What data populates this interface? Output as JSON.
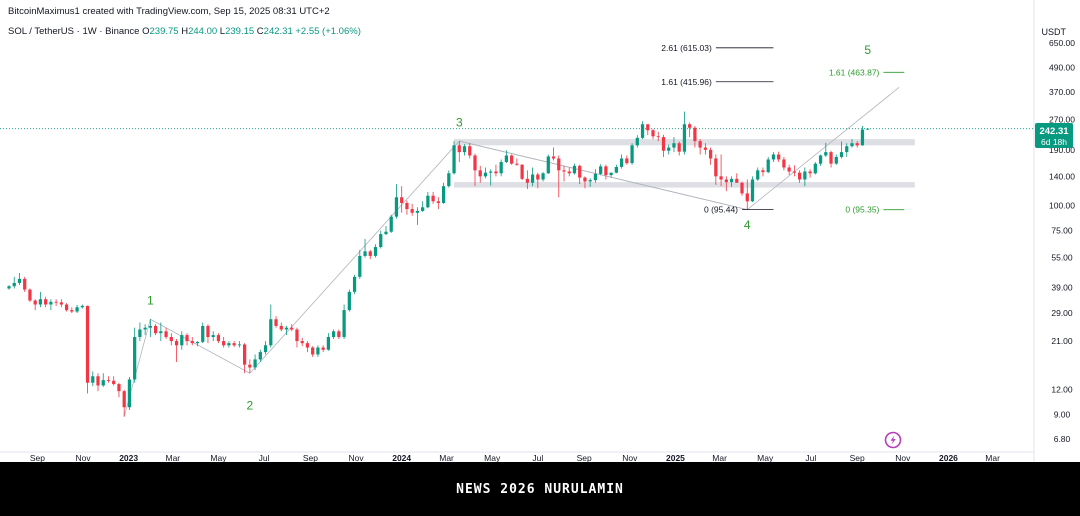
{
  "header": {
    "credit": "BitcoinMaximus1 created with TradingView.com, Sep 15, 2025 08:31 UTC+2",
    "symbol": "SOL / TetherUS · 1W · Binance",
    "o_label": "O",
    "o_val": "239.75",
    "h_label": "H",
    "h_val": "244.00",
    "l_label": "L",
    "l_val": "239.15",
    "c_label": "C",
    "c_val": "242.31",
    "change": "+2.55 (+1.06%)"
  },
  "currency": "USDT",
  "price_tag": {
    "price": "242.31",
    "countdown": "6d 18h"
  },
  "footer_text": "NEWS 2026 NURULAMIN",
  "colors": {
    "up": "#089981",
    "down": "#f23645",
    "wave": "#2e9b2e",
    "accent": "#b83dba"
  },
  "chart_data": {
    "type": "candlestick",
    "y_scale": "log",
    "y_ticks": [
      "650.00",
      "490.00",
      "370.00",
      "270.00",
      "190.00",
      "140.00",
      "100.00",
      "75.00",
      "55.00",
      "39.00",
      "29.00",
      "21.00",
      "12.00",
      "9.00",
      "6.80"
    ],
    "y_tick_values": [
      650,
      490,
      370,
      270,
      190,
      140,
      100,
      75,
      55,
      39,
      29,
      21,
      12,
      9,
      6.8
    ],
    "x_ticks": [
      "Sep",
      "Nov",
      "2023",
      "Mar",
      "May",
      "Jul",
      "Sep",
      "Nov",
      "2024",
      "Mar",
      "May",
      "Jul",
      "Sep",
      "Nov",
      "2025",
      "Mar",
      "May",
      "Jul",
      "Sep",
      "Nov",
      "2026",
      "Mar"
    ],
    "x_range": [
      "2022-07-25",
      "2026-04-20"
    ],
    "candles": [
      [
        "2022-07-25",
        38.5,
        40,
        38,
        39.5
      ],
      [
        "2022-08-01",
        39.5,
        44,
        38.5,
        41
      ],
      [
        "2022-08-08",
        41,
        46,
        40,
        43
      ],
      [
        "2022-08-15",
        43,
        44,
        37,
        38
      ],
      [
        "2022-08-22",
        38,
        38.5,
        33,
        33.5
      ],
      [
        "2022-08-29",
        33.5,
        34,
        30,
        32
      ],
      [
        "2022-09-05",
        32,
        37,
        31,
        34
      ],
      [
        "2022-09-12",
        34,
        35,
        31,
        32
      ],
      [
        "2022-09-19",
        32,
        34,
        30,
        33
      ],
      [
        "2022-09-26",
        33,
        34,
        31.5,
        32.8
      ],
      [
        "2022-10-03",
        32.8,
        34,
        31,
        32
      ],
      [
        "2022-10-10",
        32,
        32.5,
        29.5,
        30
      ],
      [
        "2022-10-17",
        30,
        31,
        29,
        29.5
      ],
      [
        "2022-10-24",
        29.5,
        31.8,
        29,
        31
      ],
      [
        "2022-10-31",
        31,
        32,
        30.5,
        31.5
      ],
      [
        "2022-11-07",
        31.5,
        31.6,
        11.5,
        13
      ],
      [
        "2022-11-14",
        13,
        14.8,
        12.5,
        14
      ],
      [
        "2022-11-21",
        14,
        14.5,
        11.8,
        12.6
      ],
      [
        "2022-11-28",
        12.6,
        14.5,
        12.4,
        13.4
      ],
      [
        "2022-12-05",
        13.4,
        14,
        13,
        13.3
      ],
      [
        "2022-12-12",
        13.3,
        14,
        12.6,
        12.8
      ],
      [
        "2022-12-19",
        12.8,
        13,
        11,
        11.8
      ],
      [
        "2022-12-26",
        11.8,
        12,
        8.8,
        9.8
      ],
      [
        "2023-01-02",
        9.8,
        13.9,
        9.5,
        13.5
      ],
      [
        "2023-01-09",
        13.5,
        24.5,
        13,
        22
      ],
      [
        "2023-01-16",
        22,
        26,
        21,
        24
      ],
      [
        "2023-01-23",
        24,
        25.5,
        22.5,
        24.5
      ],
      [
        "2023-01-30",
        24.5,
        27,
        22,
        25
      ],
      [
        "2023-02-06",
        25,
        25.5,
        22.5,
        23
      ],
      [
        "2023-02-13",
        23,
        26,
        21,
        23.5
      ],
      [
        "2023-02-20",
        23.5,
        24.5,
        21.5,
        22
      ],
      [
        "2023-02-27",
        22,
        23,
        20,
        21
      ],
      [
        "2023-03-06",
        21,
        21.5,
        16.5,
        20
      ],
      [
        "2023-03-13",
        20,
        23.5,
        19,
        22.5
      ],
      [
        "2023-03-20",
        22.5,
        23,
        20,
        21
      ],
      [
        "2023-03-27",
        21,
        22,
        20,
        20.5
      ],
      [
        "2023-04-03",
        20.5,
        21,
        19.8,
        20.8
      ],
      [
        "2023-04-10",
        20.8,
        26,
        20.5,
        25
      ],
      [
        "2023-04-17",
        25,
        25.5,
        20.5,
        22
      ],
      [
        "2023-04-24",
        22,
        23.5,
        21,
        22.5
      ],
      [
        "2023-05-01",
        22.5,
        23,
        20.5,
        21
      ],
      [
        "2023-05-08",
        21,
        22,
        19.5,
        20
      ],
      [
        "2023-05-15",
        20,
        21,
        19.5,
        20.5
      ],
      [
        "2023-05-22",
        20.5,
        21,
        19.6,
        20
      ],
      [
        "2023-05-29",
        20,
        21,
        19.5,
        20.2
      ],
      [
        "2023-06-05",
        20.2,
        20.5,
        14.5,
        16
      ],
      [
        "2023-06-12",
        16,
        17,
        14.5,
        15.5
      ],
      [
        "2023-06-19",
        15.5,
        18,
        15,
        17
      ],
      [
        "2023-06-26",
        17,
        19,
        16.5,
        18.5
      ],
      [
        "2023-07-03",
        18.5,
        21,
        18,
        20
      ],
      [
        "2023-07-10",
        20,
        32,
        19.5,
        27
      ],
      [
        "2023-07-17",
        27,
        28,
        24.5,
        25
      ],
      [
        "2023-07-24",
        25,
        26,
        23.5,
        24
      ],
      [
        "2023-07-31",
        24,
        25,
        22.5,
        24.5
      ],
      [
        "2023-08-07",
        24.5,
        25.5,
        23.5,
        24
      ],
      [
        "2023-08-14",
        24,
        24.5,
        19.5,
        21
      ],
      [
        "2023-08-21",
        21,
        21.8,
        19.8,
        20.5
      ],
      [
        "2023-08-28",
        20.5,
        21,
        18.5,
        19.5
      ],
      [
        "2023-09-04",
        19.5,
        19.8,
        17.5,
        18
      ],
      [
        "2023-09-11",
        18,
        20,
        17.5,
        19.5
      ],
      [
        "2023-09-18",
        19.5,
        20,
        18.5,
        19
      ],
      [
        "2023-09-25",
        19,
        23,
        18.8,
        22
      ],
      [
        "2023-10-02",
        22,
        24,
        21.5,
        23.5
      ],
      [
        "2023-10-09",
        23.5,
        24,
        21.5,
        22
      ],
      [
        "2023-10-16",
        22,
        32,
        21.5,
        30
      ],
      [
        "2023-10-23",
        30,
        38,
        29.5,
        37
      ],
      [
        "2023-10-30",
        37,
        45,
        36,
        44
      ],
      [
        "2023-11-06",
        44,
        60,
        43,
        56
      ],
      [
        "2023-11-13",
        56,
        68,
        55,
        59
      ],
      [
        "2023-11-20",
        59,
        60,
        54,
        56
      ],
      [
        "2023-11-27",
        56,
        64,
        55,
        62
      ],
      [
        "2023-12-04",
        62,
        75,
        61,
        72
      ],
      [
        "2023-12-11",
        72,
        79,
        71,
        74
      ],
      [
        "2023-12-18",
        74,
        90,
        73,
        88
      ],
      [
        "2023-12-25",
        88,
        128,
        86,
        110
      ],
      [
        "2024-01-01",
        110,
        125,
        92,
        103
      ],
      [
        "2024-01-08",
        103,
        106,
        90,
        96
      ],
      [
        "2024-01-15",
        96,
        102,
        89,
        92
      ],
      [
        "2024-01-22",
        92,
        98,
        80,
        94
      ],
      [
        "2024-01-29",
        94,
        105,
        93,
        98
      ],
      [
        "2024-02-05",
        98,
        117,
        97,
        112
      ],
      [
        "2024-02-12",
        112,
        117,
        102,
        105
      ],
      [
        "2024-02-19",
        105,
        110,
        96,
        103
      ],
      [
        "2024-02-26",
        103,
        130,
        102,
        125
      ],
      [
        "2024-03-04",
        125,
        150,
        123,
        145
      ],
      [
        "2024-03-11",
        145,
        210,
        143,
        200
      ],
      [
        "2024-03-18",
        200,
        210,
        165,
        185
      ],
      [
        "2024-03-25",
        185,
        203,
        178,
        198
      ],
      [
        "2024-04-01",
        198,
        205,
        172,
        178
      ],
      [
        "2024-04-08",
        178,
        182,
        125,
        150
      ],
      [
        "2024-04-15",
        150,
        158,
        130,
        140
      ],
      [
        "2024-04-22",
        140,
        155,
        137,
        146
      ],
      [
        "2024-04-29",
        146,
        152,
        126,
        148
      ],
      [
        "2024-05-06",
        148,
        160,
        140,
        145
      ],
      [
        "2024-05-13",
        145,
        170,
        140,
        165
      ],
      [
        "2024-05-20",
        165,
        189,
        163,
        178
      ],
      [
        "2024-05-27",
        178,
        180,
        160,
        162
      ],
      [
        "2024-06-03",
        162,
        172,
        158,
        160
      ],
      [
        "2024-06-10",
        160,
        161,
        134,
        136
      ],
      [
        "2024-06-17",
        136,
        150,
        121,
        130
      ],
      [
        "2024-06-24",
        130,
        155,
        125,
        143
      ],
      [
        "2024-07-01",
        143,
        146,
        122,
        135
      ],
      [
        "2024-07-08",
        135,
        147,
        132,
        145
      ],
      [
        "2024-07-15",
        145,
        180,
        144,
        176
      ],
      [
        "2024-07-22",
        176,
        195,
        168,
        172
      ],
      [
        "2024-07-29",
        172,
        178,
        110,
        150
      ],
      [
        "2024-08-05",
        150,
        158,
        132,
        148
      ],
      [
        "2024-08-12",
        148,
        155,
        140,
        145
      ],
      [
        "2024-08-19",
        145,
        162,
        143,
        158
      ],
      [
        "2024-08-26",
        158,
        160,
        128,
        138
      ],
      [
        "2024-09-02",
        138,
        140,
        122,
        132
      ],
      [
        "2024-09-09",
        132,
        137,
        124,
        134
      ],
      [
        "2024-09-16",
        134,
        152,
        130,
        144
      ],
      [
        "2024-09-23",
        144,
        161,
        142,
        157
      ],
      [
        "2024-09-30",
        157,
        160,
        135,
        142
      ],
      [
        "2024-10-07",
        142,
        145,
        138,
        146
      ],
      [
        "2024-10-14",
        146,
        160,
        145,
        156
      ],
      [
        "2024-10-21",
        156,
        180,
        153,
        172
      ],
      [
        "2024-10-28",
        172,
        178,
        160,
        163
      ],
      [
        "2024-11-04",
        163,
        205,
        160,
        200
      ],
      [
        "2024-11-11",
        200,
        225,
        195,
        218
      ],
      [
        "2024-11-18",
        218,
        264,
        215,
        255
      ],
      [
        "2024-11-25",
        255,
        255,
        225,
        238
      ],
      [
        "2024-12-02",
        238,
        242,
        215,
        222
      ],
      [
        "2024-12-09",
        222,
        234,
        210,
        220
      ],
      [
        "2024-12-16",
        220,
        226,
        175,
        188
      ],
      [
        "2024-12-23",
        188,
        202,
        180,
        195
      ],
      [
        "2024-12-30",
        195,
        220,
        185,
        205
      ],
      [
        "2025-01-06",
        205,
        209,
        178,
        186
      ],
      [
        "2025-01-13",
        186,
        295,
        180,
        255
      ],
      [
        "2025-01-20",
        255,
        260,
        220,
        245
      ],
      [
        "2025-01-27",
        245,
        250,
        195,
        210
      ],
      [
        "2025-02-03",
        210,
        215,
        180,
        195
      ],
      [
        "2025-02-10",
        195,
        205,
        180,
        190
      ],
      [
        "2025-02-17",
        190,
        195,
        160,
        172
      ],
      [
        "2025-02-24",
        172,
        180,
        127,
        140
      ],
      [
        "2025-03-03",
        140,
        180,
        125,
        135
      ],
      [
        "2025-03-10",
        135,
        140,
        118,
        131
      ],
      [
        "2025-03-17",
        131,
        140,
        124,
        136
      ],
      [
        "2025-03-24",
        136,
        145,
        130,
        130
      ],
      [
        "2025-03-31",
        130,
        132,
        112,
        115
      ],
      [
        "2025-04-07",
        115,
        135,
        95.4,
        105
      ],
      [
        "2025-04-14",
        105,
        140,
        104,
        135
      ],
      [
        "2025-04-21",
        135,
        155,
        133,
        150
      ],
      [
        "2025-04-28",
        150,
        155,
        140,
        147
      ],
      [
        "2025-05-05",
        147,
        175,
        145,
        170
      ],
      [
        "2025-05-12",
        170,
        185,
        165,
        180
      ],
      [
        "2025-05-19",
        180,
        186,
        165,
        170
      ],
      [
        "2025-05-26",
        170,
        175,
        150,
        155
      ],
      [
        "2025-06-02",
        155,
        160,
        142,
        148
      ],
      [
        "2025-06-09",
        148,
        159,
        140,
        146
      ],
      [
        "2025-06-16",
        146,
        150,
        130,
        135
      ],
      [
        "2025-06-23",
        135,
        155,
        125,
        148
      ],
      [
        "2025-06-30",
        148,
        152,
        138,
        145
      ],
      [
        "2025-07-07",
        145,
        165,
        143,
        162
      ],
      [
        "2025-07-14",
        162,
        180,
        158,
        178
      ],
      [
        "2025-07-21",
        178,
        206,
        175,
        185
      ],
      [
        "2025-07-28",
        185,
        188,
        155,
        162
      ],
      [
        "2025-08-04",
        162,
        180,
        160,
        175
      ],
      [
        "2025-08-11",
        175,
        209,
        172,
        185
      ],
      [
        "2025-08-18",
        185,
        205,
        175,
        198
      ],
      [
        "2025-08-25",
        198,
        215,
        195,
        205
      ],
      [
        "2025-09-01",
        205,
        210,
        195,
        200
      ],
      [
        "2025-09-08",
        200,
        250,
        199,
        239.75
      ],
      [
        "2025-09-15",
        239.75,
        244,
        239.15,
        242.31
      ]
    ],
    "wave_labels": [
      {
        "label": "1",
        "date": "2023-01-30",
        "price": 33.5
      },
      {
        "label": "2",
        "date": "2023-06-12",
        "price": 10
      },
      {
        "label": "3",
        "date": "2024-03-18",
        "price": 260
      },
      {
        "label": "4",
        "date": "2025-04-07",
        "price": 80
      },
      {
        "label": "5",
        "date": "2025-09-15",
        "price": 600
      }
    ],
    "wave_line": [
      [
        "2022-12-26",
        8.8
      ],
      [
        "2023-01-30",
        27
      ],
      [
        "2023-06-12",
        14.5
      ],
      [
        "2024-03-18",
        210
      ],
      [
        "2025-04-07",
        95.4
      ],
      [
        "2025-10-27",
        390
      ]
    ],
    "channel_line": [
      [
        "2024-03-18",
        210
      ],
      [
        "2025-04-07",
        95.44
      ]
    ],
    "zones": [
      {
        "start": "2024-03-11",
        "end": "2025-11-17",
        "low": 200,
        "high": 215
      },
      {
        "start": "2024-03-11",
        "end": "2025-11-17",
        "low": 123,
        "high": 131
      }
    ],
    "fib_levels": [
      {
        "label": "2.61 (615.03)",
        "value": 615.03,
        "color": "#131722",
        "start": "2025-02-24",
        "end": "2025-05-12"
      },
      {
        "label": "1.61 (415.96)",
        "value": 415.96,
        "color": "#131722",
        "start": "2025-02-24",
        "end": "2025-05-12"
      },
      {
        "label": "0 (95.44)",
        "value": 95.44,
        "color": "#131722",
        "start": "2025-03-31",
        "end": "2025-05-12"
      },
      {
        "label": "1.61 (463.87)",
        "value": 463.87,
        "color": "#2e9b2e",
        "start": "2025-10-06",
        "end": "2025-11-03"
      },
      {
        "label": "0 (95.35)",
        "value": 95.35,
        "color": "#2e9b2e",
        "start": "2025-10-06",
        "end": "2025-11-03"
      }
    ],
    "current_price": 242.31
  }
}
